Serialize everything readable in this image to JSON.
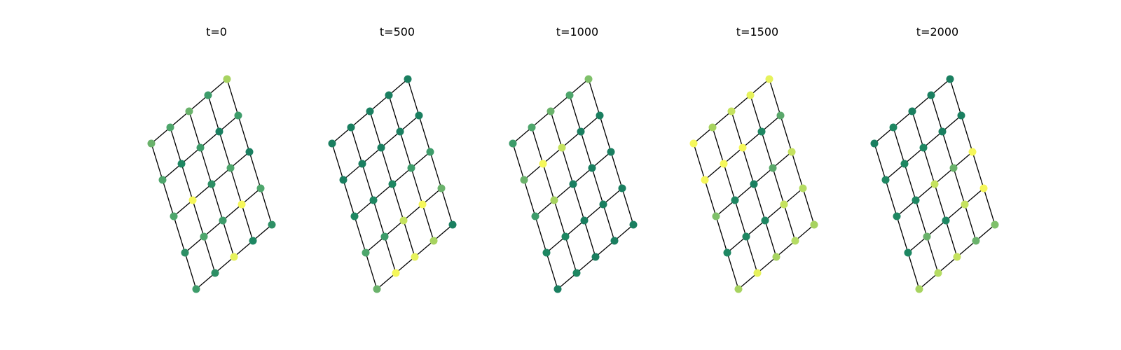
{
  "panels": [
    {
      "title": "t=0",
      "node_colors": [
        [
          "#3d9c6a",
          "#2d8f65",
          "#4ea66c",
          "#4ea66c",
          "#6ab26b"
        ],
        [
          "#2d8f65",
          "#4ea66c",
          "#f5f75a",
          "#1e8762",
          "#4ea66c"
        ],
        [
          "#e6f25c",
          "#3d9c6a",
          "#2d8f65",
          "#3d9c6a",
          "#6ab26b"
        ],
        [
          "#1e8762",
          "#f5f75a",
          "#4ea66c",
          "#1a7f60",
          "#3d9c6a"
        ],
        [
          "#2d8f65",
          "#4ea66c",
          "#1a7f60",
          "#3d9c6a",
          "#a7d360"
        ]
      ]
    },
    {
      "title": "t=500",
      "node_colors": [
        [
          "#6ab26b",
          "#4ea66c",
          "#1e8762",
          "#1a7f60",
          "#1a7f60"
        ],
        [
          "#f5f75a",
          "#3d9c6a",
          "#1e8762",
          "#1a7f60",
          "#1a7f60"
        ],
        [
          "#e6f25c",
          "#c5e25f",
          "#1e8762",
          "#1a7f60",
          "#1a7f60"
        ],
        [
          "#a7d360",
          "#f5f75a",
          "#3d9c6a",
          "#1a7f60",
          "#1a7f60"
        ],
        [
          "#1a7f60",
          "#6ab26b",
          "#3d9c6a",
          "#1a7f60",
          "#1a7f60"
        ]
      ]
    },
    {
      "title": "t=1000",
      "node_colors": [
        [
          "#1a7f60",
          "#1e8762",
          "#3d9c6a",
          "#6ab26b",
          "#3d9c6a"
        ],
        [
          "#1e8762",
          "#1e8762",
          "#a7d360",
          "#f5f75a",
          "#4ea66c"
        ],
        [
          "#1a7f60",
          "#1a7f60",
          "#1a7f60",
          "#c5e25f",
          "#6ab26b"
        ],
        [
          "#1a7f60",
          "#1a7f60",
          "#1a7f60",
          "#1a7f60",
          "#4ea66c"
        ],
        [
          "#1a7f60",
          "#1a7f60",
          "#1a7f60",
          "#1a7f60",
          "#7fc06a"
        ]
      ]
    },
    {
      "title": "t=1500",
      "node_colors": [
        [
          "#a7d360",
          "#1e8762",
          "#7fc06a",
          "#f5f75a",
          "#f5f75a"
        ],
        [
          "#e6f25c",
          "#1e8762",
          "#1e8762",
          "#f5f75a",
          "#a7d360"
        ],
        [
          "#a7d360",
          "#1e8762",
          "#1a7f60",
          "#f5f75a",
          "#c5e25f"
        ],
        [
          "#b5dc63",
          "#c5e25f",
          "#5aa86b",
          "#1e8762",
          "#e6f25c"
        ],
        [
          "#a7d360",
          "#b5dc63",
          "#c5e25f",
          "#5aa86b",
          "#e6f25c"
        ]
      ]
    },
    {
      "title": "t=2000",
      "node_colors": [
        [
          "#a7d360",
          "#1e8762",
          "#1e8762",
          "#1e8762",
          "#1a7f60"
        ],
        [
          "#b5dc63",
          "#6ab26b",
          "#1e8762",
          "#1e8762",
          "#1e8762"
        ],
        [
          "#c5e25f",
          "#1e8762",
          "#c5e25f",
          "#1e8762",
          "#1a7f60"
        ],
        [
          "#6ab26b",
          "#c5e25f",
          "#6ab26b",
          "#1a7f60",
          "#1a7f60"
        ],
        [
          "#7fc06a",
          "#f5f75a",
          "#f5f75a",
          "#1a7f60",
          "#1a7f60"
        ]
      ]
    }
  ]
}
